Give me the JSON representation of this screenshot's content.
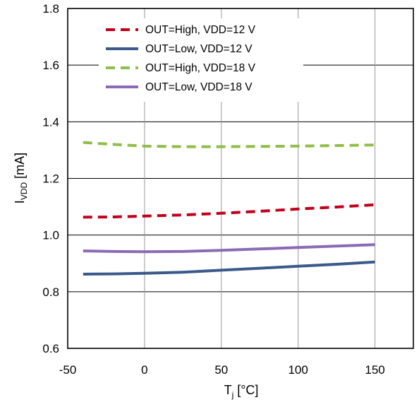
{
  "chart_data": {
    "type": "line",
    "title": "",
    "xlabel": {
      "main": "T",
      "sub": "j",
      "unit": " [°C]"
    },
    "ylabel": {
      "main": "I",
      "sub": "VDD",
      "unit": " [mA]"
    },
    "xlim": [
      -50,
      175
    ],
    "ylim": [
      0.6,
      1.8
    ],
    "xticks": [
      -50,
      0,
      50,
      100,
      150
    ],
    "xtick_labels": [
      "-50",
      "0",
      "50",
      "100",
      "150"
    ],
    "yticks": [
      0.6,
      0.8,
      1.0,
      1.2,
      1.4,
      1.6,
      1.8
    ],
    "ytick_labels": [
      "0.6",
      "0.8",
      "1.0",
      "1.2",
      "1.4",
      "1.6",
      "1.8"
    ],
    "grid": true,
    "legend_position": "top-left",
    "series": [
      {
        "name": "OUT=High, VDD=12 V",
        "color": "#c0001a",
        "style": "dashed",
        "x": [
          -40,
          -20,
          0,
          25,
          50,
          75,
          100,
          125,
          150
        ],
        "y": [
          1.063,
          1.064,
          1.067,
          1.071,
          1.077,
          1.084,
          1.092,
          1.099,
          1.107
        ]
      },
      {
        "name": "OUT=Low,  VDD=12 V",
        "color": "#3a5a8c",
        "style": "solid",
        "x": [
          -40,
          -20,
          0,
          25,
          50,
          75,
          100,
          125,
          150
        ],
        "y": [
          0.862,
          0.863,
          0.865,
          0.869,
          0.876,
          0.883,
          0.89,
          0.897,
          0.905
        ]
      },
      {
        "name": "OUT=High, VDD=18 V",
        "color": "#8fbf4a",
        "style": "dashed",
        "x": [
          -40,
          -20,
          0,
          25,
          50,
          75,
          100,
          125,
          150
        ],
        "y": [
          1.327,
          1.32,
          1.314,
          1.312,
          1.312,
          1.313,
          1.314,
          1.316,
          1.318
        ]
      },
      {
        "name": "OUT=Low,  VDD=18 V",
        "color": "#8b6bb5",
        "style": "solid",
        "x": [
          -40,
          -20,
          0,
          25,
          50,
          75,
          100,
          125,
          150
        ],
        "y": [
          0.944,
          0.942,
          0.941,
          0.942,
          0.946,
          0.951,
          0.956,
          0.961,
          0.966
        ]
      }
    ]
  }
}
